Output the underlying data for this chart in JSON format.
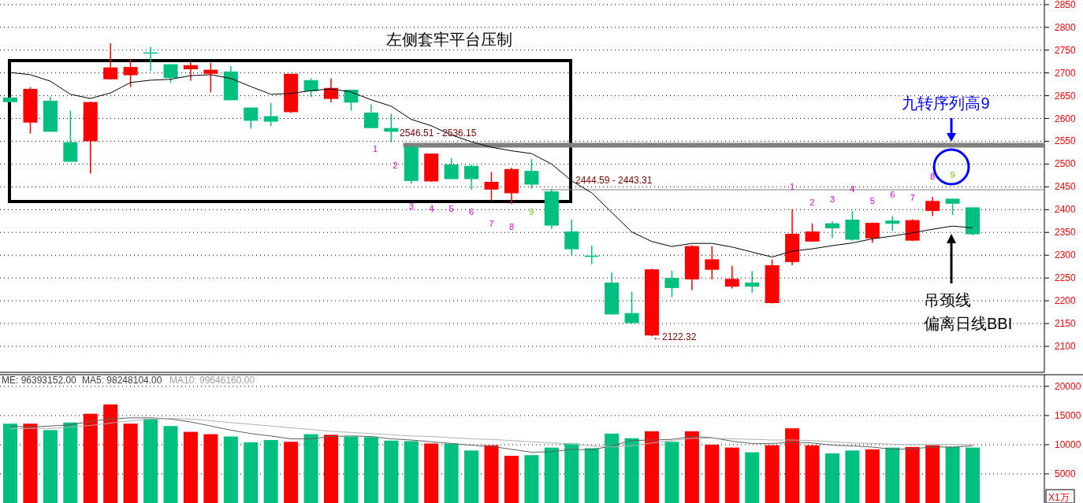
{
  "chart_data": [
    {
      "type": "candlestick",
      "categories": [
        null,
        null,
        null,
        null,
        null,
        null,
        null,
        null,
        null,
        null,
        null,
        null,
        null,
        null,
        null,
        null,
        null,
        null,
        null,
        null,
        null,
        null,
        null,
        null,
        null,
        null,
        null,
        null,
        null,
        null,
        null,
        null,
        null,
        null,
        null,
        null,
        null,
        null,
        null,
        null,
        null,
        null,
        null,
        null,
        null,
        null,
        null,
        null,
        null
      ],
      "ohlc": [
        [
          2646,
          2647,
          2635,
          2636
        ],
        [
          2591,
          2669,
          2567,
          2665
        ],
        [
          2639,
          2648,
          2571,
          2571
        ],
        [
          2548,
          2617,
          2505,
          2505
        ],
        [
          2550,
          2637,
          2479,
          2636
        ],
        [
          2686,
          2765,
          2685,
          2712
        ],
        [
          2695,
          2731,
          2669,
          2713
        ],
        [
          2745,
          2757,
          2704,
          2743
        ],
        [
          2719,
          2720,
          2678,
          2689
        ],
        [
          2708,
          2725,
          2683,
          2717
        ],
        [
          2698,
          2722,
          2657,
          2707
        ],
        [
          2703,
          2715,
          2640,
          2640
        ],
        [
          2624,
          2624,
          2578,
          2595
        ],
        [
          2605,
          2634,
          2583,
          2593
        ],
        [
          2614,
          2698,
          2612,
          2698
        ],
        [
          2684,
          2688,
          2647,
          2660
        ],
        [
          2643,
          2688,
          2635,
          2667
        ],
        [
          2663,
          2663,
          2617,
          2635
        ],
        [
          2613,
          2631,
          2578,
          2579
        ],
        [
          2579,
          2610,
          2548,
          2571
        ],
        [
          2538,
          2540,
          2457,
          2463
        ],
        [
          2462,
          2523,
          2461,
          2523
        ],
        [
          2499,
          2513,
          2467,
          2467
        ],
        [
          2496,
          2499,
          2444,
          2467
        ],
        [
          2444,
          2483,
          2420,
          2461
        ],
        [
          2436,
          2492,
          2412,
          2489
        ],
        [
          2485,
          2511,
          2446,
          2455
        ],
        [
          2440,
          2446,
          2358,
          2365
        ],
        [
          2352,
          2378,
          2300,
          2313
        ],
        [
          2299,
          2321,
          2280,
          2298
        ],
        [
          2240,
          2262,
          2170,
          2170
        ],
        [
          2173,
          2220,
          2151,
          2151
        ],
        [
          2124,
          2270,
          2122.32,
          2269
        ],
        [
          2250,
          2266,
          2208,
          2228
        ],
        [
          2247,
          2322,
          2223,
          2320
        ],
        [
          2268,
          2320,
          2247,
          2291
        ],
        [
          2231,
          2277,
          2227,
          2248
        ],
        [
          2240,
          2265,
          2218,
          2231
        ],
        [
          2195,
          2290,
          2194,
          2278
        ],
        [
          2285,
          2401,
          2278,
          2347
        ],
        [
          2330,
          2370,
          2329,
          2352
        ],
        [
          2370,
          2374,
          2338,
          2359
        ],
        [
          2378,
          2397,
          2332,
          2334
        ],
        [
          2337,
          2372,
          2327,
          2371
        ],
        [
          2376,
          2386,
          2354,
          2369
        ],
        [
          2332,
          2379,
          2331,
          2377
        ],
        [
          2397,
          2428,
          2386,
          2419
        ],
        [
          2424,
          2424,
          2388,
          2413
        ],
        [
          2405,
          2405,
          2344,
          2346
        ]
      ],
      "colors": [
        "#00c080",
        "#ff0000",
        "#00c080",
        "#00c080",
        "#ff0000",
        "#ff0000",
        "#ff0000",
        "#00c080",
        "#00c080",
        "#ff0000",
        "#ff0000",
        "#00c080",
        "#00c080",
        "#00c080",
        "#ff0000",
        "#00c080",
        "#ff0000",
        "#00c080",
        "#00c080",
        "#00c080",
        "#00c080",
        "#ff0000",
        "#00c080",
        "#00c080",
        "#ff0000",
        "#ff0000",
        "#00c080",
        "#00c080",
        "#00c080",
        "#00c080",
        "#00c080",
        "#00c080",
        "#ff0000",
        "#00c080",
        "#ff0000",
        "#ff0000",
        "#ff0000",
        "#00c080",
        "#ff0000",
        "#ff0000",
        "#ff0000",
        "#00c080",
        "#00c080",
        "#ff0000",
        "#00c080",
        "#ff0000",
        "#ff0000",
        "#00c080",
        "#00c080"
      ],
      "series": [
        {
          "type": "line",
          "color": "#000000",
          "values": [
            2701,
            2696,
            2682,
            2653,
            2644,
            2656,
            2679,
            2684,
            2686,
            2694,
            2696,
            2688,
            2670,
            2653,
            2655,
            2661,
            2665,
            2658,
            2641,
            2627,
            2598,
            2584,
            2564,
            2549,
            2537,
            2529,
            2523,
            2500,
            2463,
            2437,
            2394,
            2351,
            2330,
            2319,
            2326,
            2326,
            2318,
            2307,
            2296,
            2309,
            2314,
            2321,
            2327,
            2336,
            2342,
            2349,
            2357,
            2364,
            2360
          ]
        }
      ],
      "ylim": [
        2043,
        2860
      ],
      "yticks": [
        2100,
        2150,
        2200,
        2250,
        2300,
        2350,
        2400,
        2450,
        2500,
        2550,
        2600,
        2650,
        2700,
        2750,
        2800,
        2850
      ],
      "grid": "y",
      "bands": [
        {
          "axis": "y",
          "from": 2536.15,
          "to": 2546.51,
          "label": "2546.51 - 2536.15",
          "color": "#808080"
        },
        {
          "axis": "y",
          "from": 2443.31,
          "to": 2444.59,
          "label": "2444.59 - 2443.31",
          "color": "#808080"
        }
      ],
      "annotations": [
        "左侧套牢平台压制",
        "九转序列高9",
        "吊颈线",
        "偏离日线BBI",
        "←2122.32",
        "1",
        "2",
        "3",
        "4",
        "5",
        "6",
        "7",
        "8",
        "9",
        "1",
        "2",
        "3",
        "4",
        "5",
        "6",
        "7",
        "8",
        "9"
      ]
    },
    {
      "type": "bar",
      "categories": [
        null,
        null,
        null,
        null,
        null,
        null,
        null,
        null,
        null,
        null,
        null,
        null,
        null,
        null,
        null,
        null,
        null,
        null,
        null,
        null,
        null,
        null,
        null,
        null,
        null,
        null,
        null,
        null,
        null,
        null,
        null,
        null,
        null,
        null,
        null,
        null,
        null,
        null,
        null,
        null,
        null,
        null,
        null,
        null,
        null,
        null,
        null,
        null,
        null
      ],
      "series": [
        {
          "type": "bar",
          "values": [
            13600,
            13600,
            12500,
            13800,
            15300,
            16900,
            13600,
            14400,
            13200,
            12200,
            11800,
            11400,
            10400,
            10800,
            10500,
            11800,
            11700,
            11400,
            11300,
            10700,
            10600,
            10200,
            10200,
            9000,
            9900,
            8100,
            8200,
            9500,
            10200,
            9400,
            11900,
            11100,
            12300,
            10500,
            12300,
            10000,
            9500,
            8700,
            9900,
            12800,
            9900,
            8500,
            9000,
            9200,
            9500,
            9600,
            9900,
            9600,
            9500
          ],
          "colors": [
            "#00c080",
            "#ff0000",
            "#00c080",
            "#00c080",
            "#ff0000",
            "#ff0000",
            "#ff0000",
            "#00c080",
            "#00c080",
            "#ff0000",
            "#ff0000",
            "#00c080",
            "#00c080",
            "#00c080",
            "#ff0000",
            "#00c080",
            "#ff0000",
            "#00c080",
            "#00c080",
            "#00c080",
            "#00c080",
            "#ff0000",
            "#00c080",
            "#00c080",
            "#ff0000",
            "#ff0000",
            "#00c080",
            "#00c080",
            "#00c080",
            "#00c080",
            "#00c080",
            "#00c080",
            "#ff0000",
            "#00c080",
            "#ff0000",
            "#ff0000",
            "#ff0000",
            "#00c080",
            "#ff0000",
            "#ff0000",
            "#ff0000",
            "#00c080",
            "#00c080",
            "#ff0000",
            "#00c080",
            "#ff0000",
            "#ff0000",
            "#00c080",
            "#00c080"
          ]
        },
        {
          "type": "line",
          "color": "#606060",
          "values": [
            13200,
            13000,
            13200,
            13400,
            14000,
            14400,
            14600,
            14600,
            14400,
            13900,
            13200,
            12500,
            11900,
            11500,
            11000,
            11000,
            11400,
            11500,
            11400,
            11000,
            10800,
            10500,
            10200,
            9900,
            9700,
            9200,
            8700,
            8800,
            9200,
            9100,
            9800,
            10700,
            10800,
            10900,
            11400,
            11200,
            10600,
            10200,
            10200,
            10400,
            10300,
            9900,
            9800,
            9600,
            9200,
            9300,
            9600,
            9600,
            9800
          ]
        },
        {
          "type": "line",
          "color": "#b0b0b0",
          "values": [
            12700,
            12800,
            12800,
            13000,
            13300,
            13700,
            14100,
            14400,
            14500,
            14400,
            14100,
            13800,
            13500,
            13200,
            12900,
            12600,
            12300,
            12100,
            11900,
            11700,
            11500,
            11400,
            11200,
            11000,
            10900,
            10700,
            10500,
            10300,
            10100,
            9800,
            9600,
            9800,
            10300,
            10700,
            11100,
            11100,
            11000,
            10900,
            10800,
            10800,
            10700,
            10500,
            10300,
            10200,
            10100,
            10000,
            10000,
            10000,
            10000
          ]
        }
      ],
      "ylim": [
        0,
        22000
      ],
      "yticks": [
        5000,
        10000,
        15000,
        20000
      ],
      "grid": "y",
      "annotations": [
        "ME: 96393152.00",
        "MA5: 98248104.00",
        "MA10: 99646160.00",
        "X1万"
      ]
    }
  ]
}
